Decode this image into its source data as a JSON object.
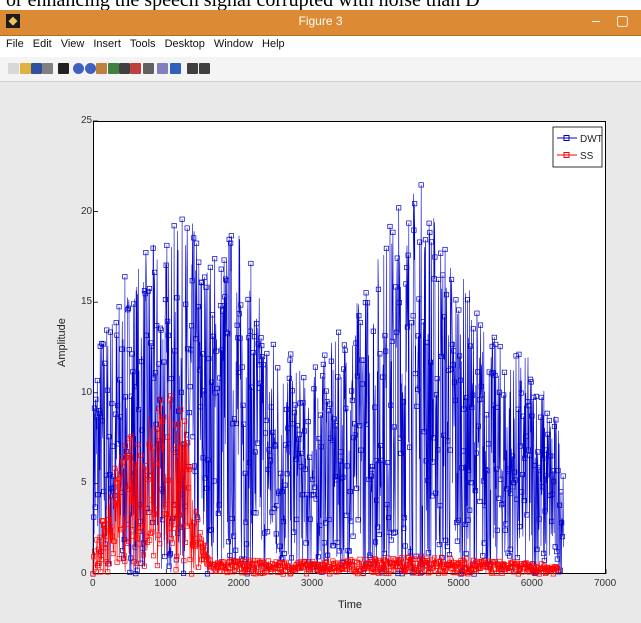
{
  "document": {
    "caption_fragment": "or enhancing the speech signal corrupted with noise than D"
  },
  "window": {
    "title": "Figure 3",
    "controls": "– ▢"
  },
  "menu": [
    "File",
    "Edit",
    "View",
    "Insert",
    "Tools",
    "Desktop",
    "Window",
    "Help"
  ],
  "toolbar": [
    {
      "icon": "new-figure-icon"
    },
    {
      "icon": "open-file-icon"
    },
    {
      "icon": "save-icon"
    },
    {
      "icon": "print-icon"
    },
    {
      "icon": "pointer-icon"
    },
    {
      "icon": "zoom-in-icon"
    },
    {
      "icon": "zoom-out-icon"
    },
    {
      "icon": "pan-icon"
    },
    {
      "icon": "rotate-icon"
    },
    {
      "icon": "data-cursor-icon"
    },
    {
      "icon": "brush-icon"
    },
    {
      "icon": "link-icon"
    },
    {
      "icon": "colorbar-icon"
    },
    {
      "icon": "legend-icon"
    },
    {
      "icon": "hide-tools-icon"
    },
    {
      "icon": "show-tools-icon"
    }
  ],
  "chart_data": {
    "type": "line",
    "xlabel": "Time",
    "ylabel": "Amplitude",
    "xlim": [
      0,
      7000
    ],
    "ylim": [
      0,
      25
    ],
    "xticks": [
      0,
      1000,
      2000,
      3000,
      4000,
      5000,
      6000,
      7000
    ],
    "yticks": [
      0,
      5,
      10,
      15,
      20,
      25
    ],
    "grid": false,
    "legend_position": "top-right",
    "series": [
      {
        "name": "DWT",
        "color": "#0000cc",
        "marker": "square",
        "x_range": [
          0,
          6420
        ],
        "envelope": [
          {
            "x": 0,
            "peak": 13
          },
          {
            "x": 500,
            "peak": 17
          },
          {
            "x": 1000,
            "peak": 19
          },
          {
            "x": 1300,
            "peak": 20
          },
          {
            "x": 1600,
            "peak": 18
          },
          {
            "x": 1950,
            "peak": 20
          },
          {
            "x": 2400,
            "peak": 14
          },
          {
            "x": 2900,
            "peak": 11
          },
          {
            "x": 3300,
            "peak": 13
          },
          {
            "x": 3800,
            "peak": 17
          },
          {
            "x": 4200,
            "peak": 21.5
          },
          {
            "x": 4500,
            "peak": 22
          },
          {
            "x": 5000,
            "peak": 17
          },
          {
            "x": 5500,
            "peak": 13
          },
          {
            "x": 6000,
            "peak": 12
          },
          {
            "x": 6420,
            "peak": 8
          }
        ]
      },
      {
        "name": "SS",
        "color": "#ff0000",
        "marker": "square",
        "x_range": [
          0,
          6350
        ],
        "envelope": [
          {
            "x": 0,
            "peak": 1
          },
          {
            "x": 300,
            "peak": 6
          },
          {
            "x": 600,
            "peak": 8.5
          },
          {
            "x": 900,
            "peak": 10
          },
          {
            "x": 1200,
            "peak": 10
          },
          {
            "x": 1450,
            "peak": 3
          },
          {
            "x": 1600,
            "peak": 0.8
          },
          {
            "x": 3000,
            "peak": 0.7
          },
          {
            "x": 4500,
            "peak": 1
          },
          {
            "x": 6350,
            "peak": 0.5
          }
        ]
      }
    ]
  }
}
